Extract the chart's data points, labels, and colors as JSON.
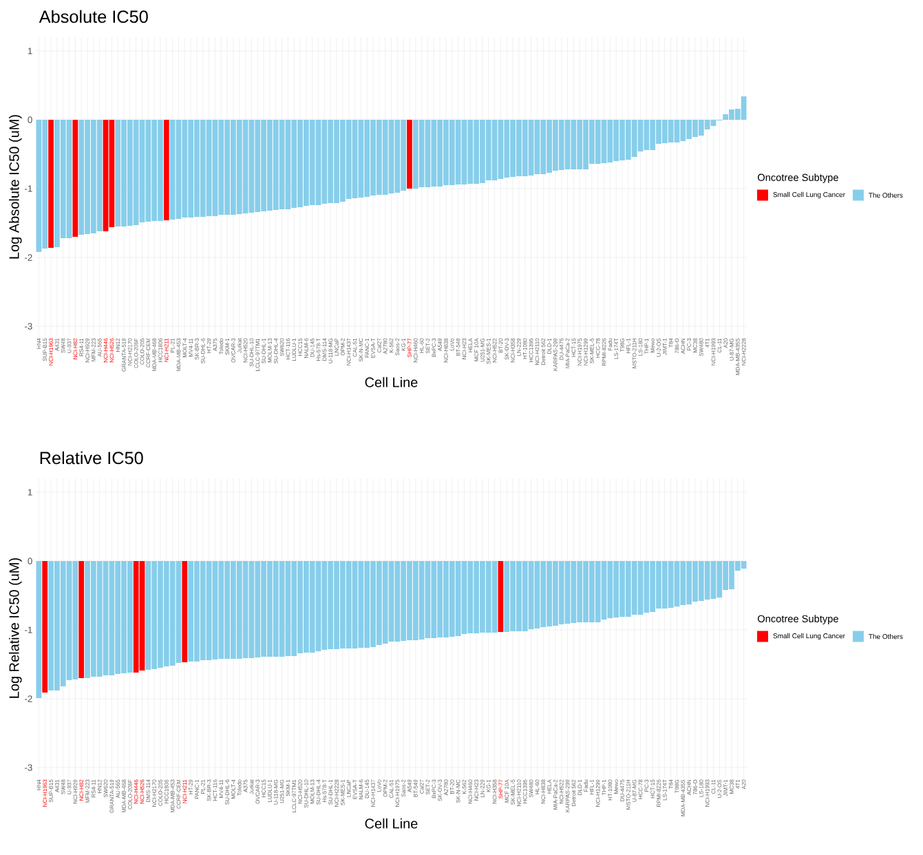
{
  "chart_data": [
    {
      "type": "bar",
      "title": "Absolute IC50",
      "xlabel": "Cell Line",
      "ylabel": "Log Absolute IC50 (uM)",
      "legend_title": "Oncotree Subtype",
      "legend": "right",
      "grid": true,
      "ylim": [
        -3.15,
        1.2
      ],
      "yticks": [
        -3,
        -2,
        -1,
        0,
        1
      ],
      "categories": [
        "HN4",
        "SUP-B15",
        "NCI-H1963",
        "A431",
        "SW48",
        "U-937",
        "NCI-H82",
        "RS4-11",
        "NCI-H929",
        "MFM-223",
        "AU-565",
        "NCI-H446",
        "NCI-H526",
        "HN12",
        "GRANTA-519",
        "NCI-H2170",
        "COLO-206F",
        "COLO-205",
        "CCRF-CEM",
        "MDA-MB-468",
        "HCC1806",
        "NCI-H211",
        "PL-21",
        "MDA-MB-453",
        "MOLT-4",
        "MV4-11",
        "SK-BR-3",
        "SU-DHL-6",
        "HT-29",
        "A375",
        "Toledo",
        "SKM-1",
        "OVCAR-3",
        "Jurkat",
        "NCI-H520",
        "SU-DHL-10",
        "LCLC-97TM1",
        "SU-DHL-1",
        "MOLM-13",
        "SU-DHL-4",
        "SW620",
        "HCT-116",
        "LUDLU-1",
        "HCC15",
        "NALM-6",
        "DU-145",
        "Hs-578-T",
        "DMS-114",
        "U-118-MG",
        "LNCaP",
        "OPM-2",
        "NCI-H1437",
        "CAL-51",
        "SK-N-MC",
        "PANC-1",
        "EVSA-T",
        "Cal27",
        "A2780",
        "K-562",
        "Saos-2",
        "KG-1",
        "SHP-77",
        "NCI-H460",
        "HL-60",
        "SET-2",
        "BxPC-3",
        "A549",
        "NCI-H838",
        "LoVo",
        "BT-549",
        "NCI-H23",
        "HELA",
        "MCF 10A",
        "U251-MG",
        "SK-MES-1",
        "NCI-H522",
        "BT-20",
        "SK-OV-3",
        "NCI-H358",
        "LN-229",
        "HT-1080",
        "HCC1395",
        "NCI-H2110",
        "Detroit 562",
        "DLD-1",
        "KARPAS-299",
        "DU-4475",
        "MIA-PaCa-2",
        "HCT-15",
        "NCI-H1975",
        "NCI-H1299",
        "SK-MEL-5",
        "HCC-78",
        "RPMI-8226",
        "Fadu",
        "LS-174T",
        "T98G",
        "HFL-1",
        "MSTO-211H",
        "LS-180",
        "THP-1",
        "Mewo",
        "U-2-OS",
        "JIMT-1",
        "T84",
        "786-O",
        "ACHN",
        "PC-3",
        "MC38",
        "SW480",
        "4T1",
        "NCI-H1993",
        "CL-11",
        "A20",
        "U-87-MG",
        "MDA-MB-435S",
        "NCI-H2228"
      ],
      "series": [
        {
          "name": "Small Cell Lung Cancer",
          "color": "#ff0000",
          "values": [
            null,
            null,
            -1.86,
            null,
            null,
            null,
            -1.7,
            null,
            null,
            null,
            null,
            -1.62,
            -1.56,
            null,
            null,
            null,
            null,
            null,
            null,
            null,
            null,
            -1.46,
            null,
            null,
            null,
            null,
            null,
            null,
            null,
            null,
            null,
            null,
            null,
            null,
            null,
            null,
            null,
            null,
            null,
            null,
            null,
            null,
            null,
            null,
            null,
            null,
            null,
            null,
            null,
            null,
            null,
            null,
            null,
            null,
            null,
            null,
            null,
            null,
            null,
            null,
            null,
            -1.0,
            null,
            null,
            null,
            null,
            null,
            null,
            null,
            null,
            null,
            null,
            null,
            null,
            null,
            null,
            null,
            null,
            null,
            null,
            null,
            null,
            null,
            null,
            null,
            null,
            null,
            null,
            null,
            null,
            null,
            null,
            null,
            null,
            null,
            null,
            null,
            null,
            null,
            null,
            null,
            null,
            null,
            null,
            null,
            null,
            null,
            null,
            null,
            null,
            null,
            null,
            null,
            null,
            null,
            null,
            null
          ]
        },
        {
          "name": "The Others",
          "color": "#87ceeb",
          "values": [
            -1.92,
            -1.87,
            null,
            -1.85,
            -1.72,
            -1.72,
            null,
            -1.67,
            -1.66,
            -1.65,
            -1.62,
            null,
            null,
            -1.55,
            -1.55,
            -1.54,
            -1.53,
            -1.49,
            -1.48,
            -1.47,
            -1.47,
            null,
            -1.45,
            -1.44,
            -1.42,
            -1.42,
            -1.41,
            -1.41,
            -1.4,
            -1.4,
            -1.38,
            -1.38,
            -1.38,
            -1.37,
            -1.36,
            -1.35,
            -1.34,
            -1.33,
            -1.32,
            -1.31,
            -1.3,
            -1.3,
            -1.28,
            -1.27,
            -1.25,
            -1.24,
            -1.24,
            -1.22,
            -1.21,
            -1.21,
            -1.19,
            -1.15,
            -1.14,
            -1.13,
            -1.12,
            -1.1,
            -1.09,
            -1.09,
            -1.07,
            -1.06,
            -1.03,
            null,
            -1.0,
            -0.98,
            -0.98,
            -0.97,
            -0.97,
            -0.95,
            -0.95,
            -0.94,
            -0.94,
            -0.93,
            -0.93,
            -0.92,
            -0.88,
            -0.88,
            -0.86,
            -0.84,
            -0.83,
            -0.82,
            -0.82,
            -0.81,
            -0.79,
            -0.79,
            -0.77,
            -0.74,
            -0.73,
            -0.72,
            -0.72,
            -0.72,
            -0.72,
            -0.64,
            -0.64,
            -0.63,
            -0.62,
            -0.6,
            -0.59,
            -0.58,
            -0.54,
            -0.46,
            -0.44,
            -0.44,
            -0.35,
            -0.34,
            -0.33,
            -0.33,
            -0.31,
            -0.28,
            -0.25,
            -0.23,
            -0.14,
            -0.09,
            -0.01,
            0.08,
            0.15,
            0.16,
            0.34
          ]
        }
      ]
    },
    {
      "type": "bar",
      "title": "Relative IC50",
      "xlabel": "Cell Line",
      "ylabel": "Log Relative IC50 (uM)",
      "legend_title": "Oncotree Subtype",
      "legend": "right",
      "grid": true,
      "ylim": [
        -3.15,
        1.2
      ],
      "yticks": [
        -3,
        -2,
        -1,
        0,
        1
      ],
      "categories": [
        "HN4",
        "NCI-H1963",
        "SUP-B15",
        "A431",
        "SW48",
        "U-937",
        "NCI-H929",
        "NCI-H82",
        "MFM-223",
        "RS4-11",
        "HN12",
        "SW620",
        "GRANTA-519",
        "AU-565",
        "MDA-MB-468",
        "COLO-206F",
        "NCI-H446",
        "NCI-H526",
        "DMS-114",
        "NCI-H2170",
        "COLO-205",
        "HCC1806",
        "MDA-MB-453",
        "CCRF-CEM",
        "NCI-H211",
        "HT-29",
        "PANC-1",
        "PL-21",
        "SK-BR-3",
        "HCT-116",
        "MV4-11",
        "SU-DHL-6",
        "MOLT-4",
        "Toledo",
        "A375",
        "Jurkat",
        "OVCAR-3",
        "HCC15",
        "LUDLU-1",
        "U-118-MG",
        "U251-MG",
        "SKM-1",
        "LCLC-97TM1",
        "NCI-H520",
        "SU-DHL-10",
        "MOLM-13",
        "SU-DHL-4",
        "Hs-578-T",
        "SU-DHL-1",
        "NCI-H2228",
        "SK-MES-1",
        "LNCaP",
        "EVSA-T",
        "NALM-6",
        "DU-145",
        "NCI-H1437",
        "LoVo",
        "OPM-2",
        "CAL-51",
        "NCI-H1975",
        "Saos-2",
        "A549",
        "BT-549",
        "Cal27",
        "SET-2",
        "BxPC-3",
        "SK-OV-3",
        "A2780",
        "BT-20",
        "SK-N-MC",
        "K-562",
        "NCI-H460",
        "NCI-H23",
        "LN-229",
        "KG-1",
        "NCI-H358",
        "SHP-77",
        "MCF 10A",
        "SK-MEL-5",
        "NCI-H2110",
        "HCC1395",
        "SW480",
        "HL-60",
        "NCI-H838",
        "HELA",
        "MIA-PaCa-2",
        "NCI-H522",
        "KARPAS-299",
        "Detroit 562",
        "DLD-1",
        "Fadu",
        "HFL-1",
        "NCI-H1299",
        "THP-1",
        "HT-1080",
        "Mewo",
        "DU-4475",
        "MSTO-211H",
        "U-87-MG",
        "HCC-78",
        "PC-3",
        "HCT-15",
        "RPMI-8226",
        "LS-174T",
        "T84",
        "T98G",
        "MDA-MB-435S",
        "ACHN",
        "786-O",
        "LS-180",
        "NCI-H1993",
        "CL-11",
        "U-2-OS",
        "JIMT-1",
        "MC38",
        "4T1",
        "A20"
      ],
      "series": [
        {
          "name": "Small Cell Lung Cancer",
          "color": "#ff0000",
          "values": [
            null,
            -1.91,
            null,
            null,
            null,
            null,
            null,
            -1.7,
            null,
            null,
            null,
            null,
            null,
            null,
            null,
            null,
            -1.62,
            -1.59,
            null,
            null,
            null,
            null,
            null,
            null,
            -1.47,
            null,
            null,
            null,
            null,
            null,
            null,
            null,
            null,
            null,
            null,
            null,
            null,
            null,
            null,
            null,
            null,
            null,
            null,
            null,
            null,
            null,
            null,
            null,
            null,
            null,
            null,
            null,
            null,
            null,
            null,
            null,
            null,
            null,
            null,
            null,
            null,
            null,
            null,
            null,
            null,
            null,
            null,
            null,
            null,
            null,
            null,
            null,
            null,
            null,
            null,
            null,
            -1.03,
            null,
            null,
            null,
            null,
            null,
            null,
            null,
            null,
            null,
            null,
            null,
            null,
            null,
            null,
            null,
            null,
            null,
            null,
            null,
            null,
            null,
            null,
            null,
            null,
            null,
            null,
            null,
            null,
            null,
            null,
            null,
            null,
            null,
            null,
            null,
            null,
            null,
            null,
            null,
            null
          ]
        },
        {
          "name": "The Others",
          "color": "#87ceeb",
          "values": [
            -1.99,
            null,
            -1.88,
            -1.88,
            -1.82,
            -1.73,
            -1.72,
            null,
            -1.7,
            -1.68,
            -1.68,
            -1.66,
            -1.66,
            -1.64,
            -1.63,
            -1.62,
            null,
            null,
            -1.58,
            -1.57,
            -1.55,
            -1.53,
            -1.52,
            -1.48,
            null,
            -1.46,
            -1.46,
            -1.44,
            -1.44,
            -1.43,
            -1.42,
            -1.42,
            -1.42,
            -1.42,
            -1.41,
            -1.41,
            -1.4,
            -1.39,
            -1.39,
            -1.39,
            -1.39,
            -1.38,
            -1.38,
            -1.34,
            -1.33,
            -1.33,
            -1.31,
            -1.29,
            -1.28,
            -1.28,
            -1.27,
            -1.27,
            -1.27,
            -1.26,
            -1.26,
            -1.25,
            -1.22,
            -1.2,
            -1.17,
            -1.17,
            -1.16,
            -1.15,
            -1.15,
            -1.14,
            -1.12,
            -1.12,
            -1.11,
            -1.11,
            -1.1,
            -1.09,
            -1.06,
            -1.05,
            -1.05,
            -1.04,
            -1.04,
            -1.04,
            null,
            -1.03,
            -1.02,
            -1.02,
            -1.02,
            -0.99,
            -0.98,
            -0.96,
            -0.95,
            -0.94,
            -0.92,
            -0.91,
            -0.9,
            -0.89,
            -0.89,
            -0.89,
            -0.89,
            -0.85,
            -0.83,
            -0.82,
            -0.81,
            -0.81,
            -0.78,
            -0.78,
            -0.75,
            -0.74,
            -0.69,
            -0.69,
            -0.68,
            -0.66,
            -0.64,
            -0.63,
            -0.59,
            -0.58,
            -0.56,
            -0.55,
            -0.53,
            -0.42,
            -0.41,
            -0.14,
            -0.11
          ]
        }
      ]
    }
  ]
}
